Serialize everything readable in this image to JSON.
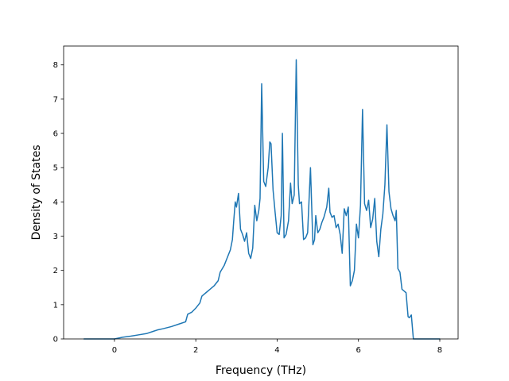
{
  "chart_data": {
    "type": "line",
    "xlabel": "Frequency (THz)",
    "ylabel": "Density of States",
    "xlim": [
      -1.25,
      8.45
    ],
    "ylim": [
      0,
      8.55
    ],
    "xticks": [
      0,
      2,
      4,
      6,
      8
    ],
    "yticks": [
      0,
      1,
      2,
      3,
      4,
      5,
      6,
      7,
      8
    ],
    "grid": false,
    "series": [
      {
        "color": "#1f77b4",
        "x": [
          -0.75,
          -0.2,
          0,
          0.2,
          0.4,
          0.6,
          0.8,
          0.95,
          1.05,
          1.2,
          1.4,
          1.6,
          1.75,
          1.8,
          1.9,
          2.0,
          2.1,
          2.15,
          2.25,
          2.35,
          2.45,
          2.55,
          2.6,
          2.7,
          2.8,
          2.85,
          2.9,
          2.93,
          2.97,
          3.0,
          3.05,
          3.1,
          3.15,
          3.2,
          3.25,
          3.3,
          3.35,
          3.4,
          3.45,
          3.5,
          3.55,
          3.58,
          3.62,
          3.67,
          3.72,
          3.78,
          3.82,
          3.85,
          3.9,
          3.95,
          4.0,
          4.05,
          4.1,
          4.13,
          4.17,
          4.22,
          4.28,
          4.33,
          4.37,
          4.42,
          4.47,
          4.52,
          4.55,
          4.6,
          4.65,
          4.7,
          4.75,
          4.82,
          4.88,
          4.92,
          4.95,
          5.0,
          5.05,
          5.1,
          5.15,
          5.22,
          5.27,
          5.3,
          5.35,
          5.4,
          5.45,
          5.5,
          5.55,
          5.6,
          5.65,
          5.7,
          5.75,
          5.8,
          5.85,
          5.9,
          5.95,
          6.0,
          6.05,
          6.1,
          6.15,
          6.2,
          6.25,
          6.3,
          6.35,
          6.4,
          6.45,
          6.5,
          6.55,
          6.6,
          6.65,
          6.7,
          6.75,
          6.8,
          6.85,
          6.9,
          6.93,
          6.97,
          7.02,
          7.07,
          7.12,
          7.17,
          7.22,
          7.25,
          7.3,
          7.35,
          8.0
        ],
        "y": [
          0.0,
          0.0,
          0.0,
          0.05,
          0.08,
          0.12,
          0.16,
          0.22,
          0.26,
          0.3,
          0.36,
          0.44,
          0.5,
          0.72,
          0.78,
          0.9,
          1.05,
          1.25,
          1.35,
          1.45,
          1.55,
          1.7,
          1.95,
          2.15,
          2.45,
          2.6,
          2.9,
          3.4,
          4.0,
          3.85,
          4.25,
          3.2,
          3.05,
          2.85,
          3.1,
          2.5,
          2.35,
          2.65,
          3.9,
          3.45,
          3.75,
          4.1,
          7.45,
          4.6,
          4.45,
          5.0,
          5.75,
          5.7,
          4.35,
          3.7,
          3.1,
          3.05,
          3.6,
          6.0,
          2.95,
          3.05,
          3.45,
          4.55,
          3.95,
          4.2,
          8.15,
          4.5,
          3.95,
          4.0,
          2.9,
          2.95,
          3.1,
          5.0,
          2.75,
          2.9,
          3.6,
          3.1,
          3.2,
          3.4,
          3.55,
          3.85,
          4.4,
          3.7,
          3.55,
          3.6,
          3.25,
          3.35,
          3.05,
          2.5,
          3.8,
          3.6,
          3.85,
          1.55,
          1.7,
          2.0,
          3.35,
          2.95,
          3.9,
          6.7,
          3.95,
          3.75,
          4.05,
          3.25,
          3.5,
          4.1,
          2.85,
          2.4,
          3.2,
          3.65,
          4.5,
          6.25,
          4.3,
          3.8,
          3.6,
          3.45,
          3.75,
          2.05,
          1.95,
          1.45,
          1.4,
          1.35,
          0.65,
          0.62,
          0.7,
          0.0,
          0.0
        ]
      }
    ]
  }
}
